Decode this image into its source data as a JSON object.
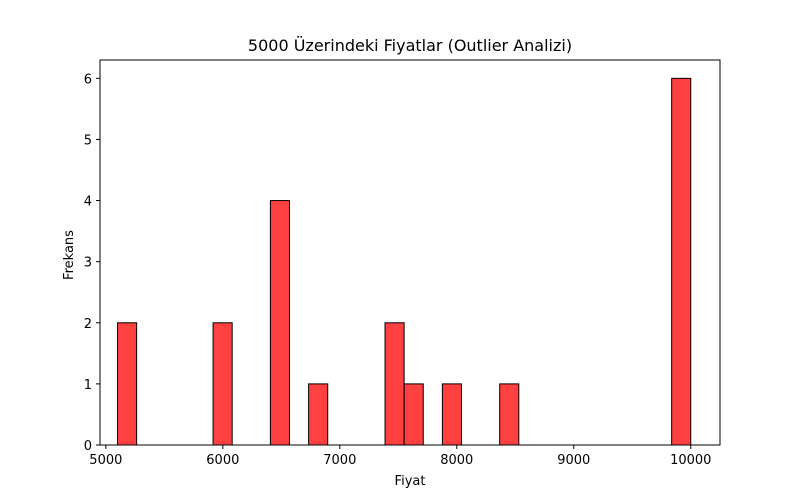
{
  "chart_data": {
    "type": "bar",
    "title": "5000 Üzerindeki Fiyatlar (Outlier Analizi)",
    "xlabel": "Fiyat",
    "ylabel": "Frekans",
    "xlim": [
      4950,
      10250
    ],
    "ylim": [
      0,
      6.3
    ],
    "bin_range": [
      5100,
      10000
    ],
    "bin_count": 30,
    "bars": [
      {
        "x_start": 5100.0,
        "x_end": 5263.3,
        "count": 2
      },
      {
        "x_start": 5916.7,
        "x_end": 6080.0,
        "count": 2
      },
      {
        "x_start": 6406.7,
        "x_end": 6570.0,
        "count": 4
      },
      {
        "x_start": 6733.3,
        "x_end": 6896.7,
        "count": 1
      },
      {
        "x_start": 7386.7,
        "x_end": 7550.0,
        "count": 2
      },
      {
        "x_start": 7550.0,
        "x_end": 7713.3,
        "count": 1
      },
      {
        "x_start": 7876.7,
        "x_end": 8040.0,
        "count": 1
      },
      {
        "x_start": 8366.7,
        "x_end": 8530.0,
        "count": 1
      },
      {
        "x_start": 9836.7,
        "x_end": 10000.0,
        "count": 6
      }
    ],
    "xticks": [
      5000,
      6000,
      7000,
      8000,
      9000,
      10000
    ],
    "yticks": [
      0,
      1,
      2,
      3,
      4,
      5,
      6
    ],
    "bar_color": "#ff4040",
    "edge_color": "#000000",
    "grid": false,
    "legend": false
  }
}
